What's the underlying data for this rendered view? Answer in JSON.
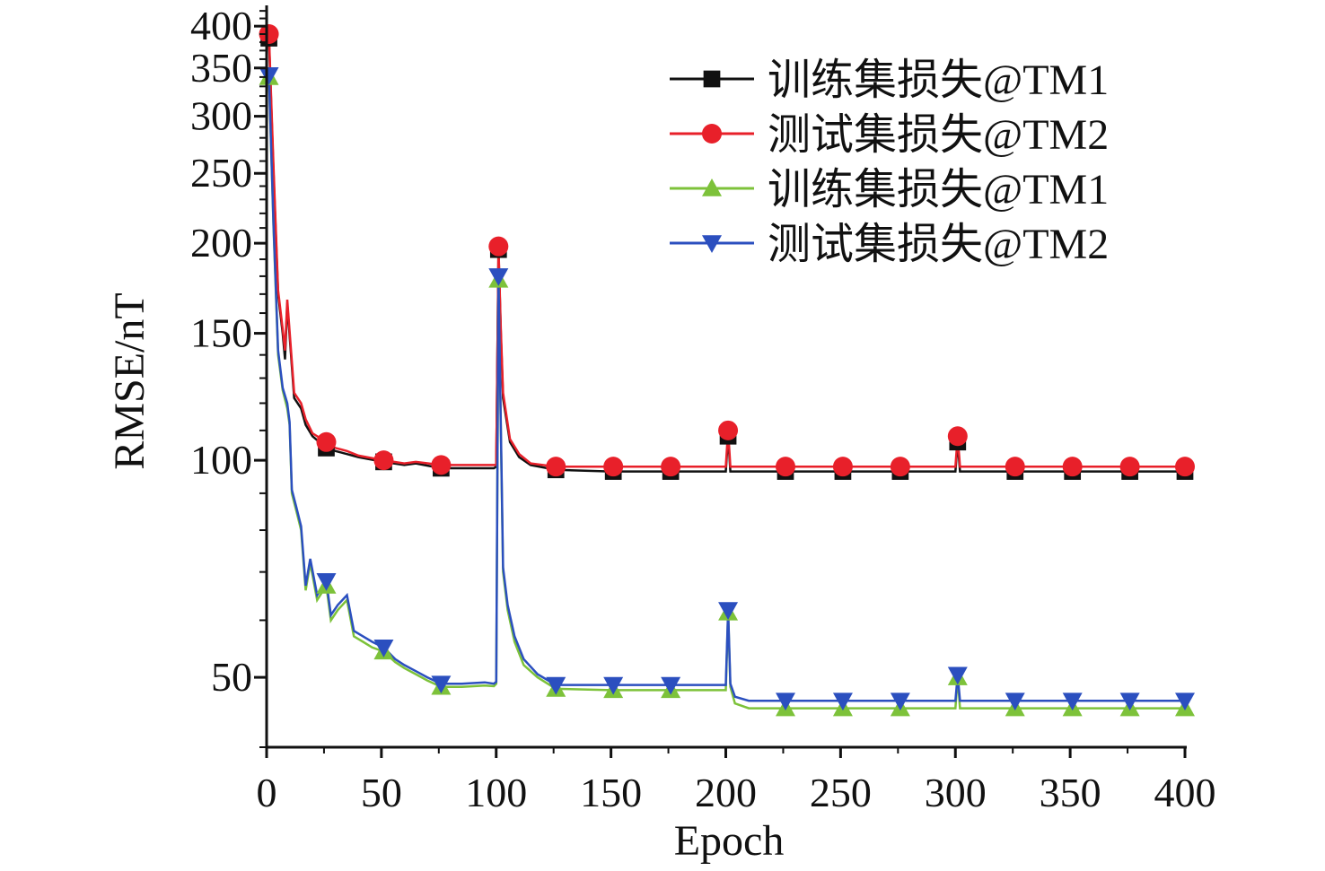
{
  "chart_data": {
    "type": "line",
    "xlabel": "Epoch",
    "ylabel": "RMSE/nT",
    "xlim": [
      0,
      400
    ],
    "ylim": [
      40,
      425
    ],
    "yscale": "log",
    "xticks": [
      0,
      50,
      100,
      150,
      200,
      250,
      300,
      350,
      400
    ],
    "yticks": [
      50,
      100,
      150,
      200,
      250,
      300,
      350,
      400
    ],
    "grid": false,
    "legend_position": "top-right",
    "marker_epochs": [
      1,
      26,
      51,
      76,
      101,
      126,
      151,
      176,
      201,
      226,
      251,
      276,
      301,
      326,
      351,
      376,
      400
    ],
    "series": [
      {
        "name": "训练集损失@TM1",
        "color": "#111111",
        "marker": "square",
        "x": [
          0,
          1,
          3,
          5,
          7,
          8,
          9,
          12,
          15,
          17,
          20,
          26,
          30,
          35,
          40,
          51,
          60,
          65,
          76,
          90,
          99,
          100,
          101,
          102,
          103,
          106,
          110,
          115,
          126,
          150,
          200,
          201,
          202,
          226,
          300,
          301,
          302,
          400
        ],
        "y": [
          380,
          385,
          250,
          170,
          150,
          138,
          165,
          122,
          118,
          112,
          108,
          104,
          103,
          102,
          101,
          99.5,
          98.5,
          99,
          97.5,
          97.5,
          97.5,
          98,
          196,
          150,
          122,
          106,
          101,
          98.5,
          97,
          96.5,
          96.5,
          108,
          96.5,
          96.5,
          96.5,
          106,
          96.5,
          96.5
        ]
      },
      {
        "name": "测试集损失@TM2",
        "color": "#e8202a",
        "marker": "circle",
        "x": [
          0,
          1,
          3,
          5,
          7,
          8,
          9,
          12,
          15,
          17,
          20,
          26,
          30,
          35,
          40,
          51,
          60,
          65,
          76,
          90,
          99,
          100,
          101,
          102,
          103,
          106,
          110,
          115,
          126,
          150,
          200,
          201,
          202,
          226,
          300,
          301,
          302,
          400
        ],
        "y": [
          388,
          390,
          255,
          172,
          152,
          142,
          167,
          124,
          120,
          114,
          109,
          106,
          104,
          103,
          101.5,
          100,
          99,
          99.5,
          98.5,
          98.5,
          98.5,
          98.5,
          198,
          152,
          124,
          107,
          102,
          99,
          98,
          98,
          98,
          110,
          98,
          98,
          98,
          108,
          98,
          98
        ]
      },
      {
        "name": "训练集损失@TM1",
        "color": "#7dc23a",
        "marker": "triangle-up",
        "x": [
          0,
          1,
          3,
          5,
          7,
          9,
          10,
          11,
          13,
          15,
          17,
          19,
          22,
          26,
          28,
          31,
          35,
          38,
          42,
          46,
          51,
          56,
          60,
          65,
          70,
          76,
          85,
          95,
          99,
          100,
          101,
          102,
          103,
          105,
          108,
          112,
          118,
          126,
          150,
          175,
          200,
          201,
          202,
          204,
          210,
          226,
          300,
          301,
          302,
          400
        ],
        "y": [
          340,
          340,
          210,
          140,
          125,
          118,
          112,
          90,
          85,
          80,
          66,
          72,
          64,
          67,
          60,
          62,
          64,
          57,
          56,
          55,
          54.3,
          52.5,
          51.5,
          50.5,
          49.5,
          48.5,
          48.5,
          48.7,
          48.6,
          49,
          178,
          110,
          70,
          62,
          56,
          52,
          50,
          48.2,
          48,
          48,
          48,
          61.5,
          48.5,
          46,
          45.3,
          45.3,
          45.3,
          50,
          45.3,
          45.3
        ]
      },
      {
        "name": "测试集损失@TM2",
        "color": "#2b4fbf",
        "marker": "triangle-down",
        "x": [
          0,
          1,
          3,
          5,
          7,
          9,
          10,
          11,
          13,
          15,
          17,
          19,
          22,
          26,
          28,
          31,
          35,
          38,
          42,
          46,
          51,
          56,
          60,
          65,
          70,
          76,
          85,
          95,
          99,
          100,
          101,
          102,
          103,
          105,
          108,
          112,
          118,
          126,
          150,
          175,
          200,
          201,
          202,
          204,
          210,
          226,
          300,
          301,
          302,
          400
        ],
        "y": [
          342,
          342,
          212,
          142,
          126,
          120,
          113,
          91,
          86,
          81,
          67,
          73,
          65,
          68,
          61,
          63,
          65,
          58,
          57,
          56,
          55,
          53,
          52,
          51,
          50,
          49,
          49,
          49.2,
          49,
          49.3,
          180,
          112,
          71,
          63,
          57,
          53,
          50.5,
          48.8,
          48.8,
          48.8,
          48.8,
          62,
          49,
          47,
          46.4,
          46.4,
          46.4,
          50.4,
          46.4,
          46.4
        ]
      }
    ]
  }
}
